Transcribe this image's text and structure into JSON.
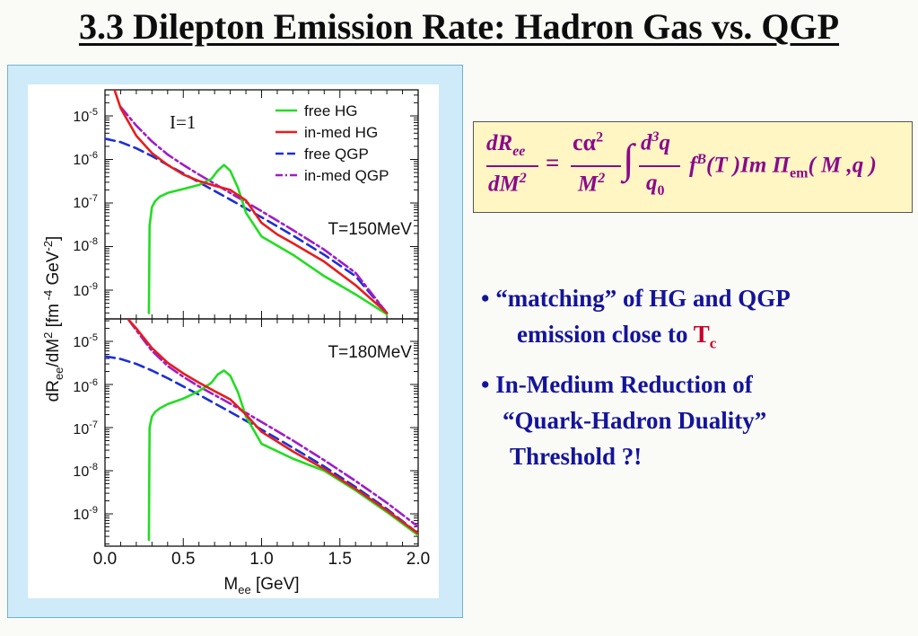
{
  "slide": {
    "title": "3.3 Dilepton Emission Rate: Hadron Gas vs. QGP"
  },
  "formula": {
    "lhs_num": "dR",
    "lhs_num_sub": "ee",
    "lhs_den": "dM",
    "lhs_den_sup": "2",
    "equals": "=",
    "c_alpha": "cα",
    "alpha_sup": "2",
    "M": "M",
    "M_sup": "2",
    "integral": "∫",
    "d3q": "d",
    "d3q_sup": "3",
    "q_letter": "q",
    "q0": "q",
    "q0_sub": "0",
    "rest_a": "f",
    "rest_a_sup": "B",
    "rest_b": "(T )Im Π",
    "rest_b_sub": "em",
    "rest_c": "( M ,q )"
  },
  "bullets": {
    "b1_line1": "• “matching” of HG and QGP",
    "b1_line2": "emission close to ",
    "b1_tc": "T",
    "b1_tc_sub": "c",
    "b2_line1": "• In-Medium Reduction of",
    "b2_line2": "“Quark-Hadron Duality”",
    "b2_line3": "Threshold ?!"
  },
  "colors": {
    "free_hg": "#22dd22",
    "in_med_hg": "#e81c1c",
    "free_qgp": "#1c2fd6",
    "in_med_qgp": "#a01cc8",
    "bullet_text": "#14149a",
    "tc": "#c8002a",
    "formula_text": "#8a0a8a"
  },
  "chart_data": {
    "type": "line",
    "xlabel": "M_ee [GeV]",
    "ylabel": "dR_ee/dM^2 [fm^-4 GeV^-2]",
    "x_ticks": [
      "0.0",
      "0.5",
      "1.0",
      "1.5",
      "2.0"
    ],
    "xlim": [
      0,
      2
    ],
    "y_scale": "log",
    "legend": [
      "free HG",
      "in-med HG",
      "free QGP",
      "in-med QGP"
    ],
    "legend_position": "top-right of top panel",
    "annotation": "I=1",
    "panels": [
      {
        "label": "T=150MeV",
        "ylim": [
          3e-10,
          4e-05
        ],
        "y_ticks": [
          "10^-5",
          "10^-6",
          "10^-7",
          "10^-8",
          "10^-9"
        ],
        "series": [
          {
            "name": "free HG",
            "x": [
              0.28,
              0.285,
              0.3,
              0.32,
              0.35,
              0.4,
              0.5,
              0.6,
              0.68,
              0.72,
              0.76,
              0.8,
              0.85,
              0.9,
              1.0,
              1.2,
              1.4,
              1.6,
              1.8
            ],
            "y": [
              3e-10,
              3e-08,
              8e-08,
              1.1e-07,
              1.4e-07,
              1.7e-07,
              2.1e-07,
              2.6e-07,
              3.6e-07,
              5.5e-07,
              7.5e-07,
              5.5e-07,
              2.2e-07,
              6e-08,
              1.7e-08,
              6.5e-09,
              2.1e-09,
              8e-10,
              2.8e-10
            ]
          },
          {
            "name": "in-med HG",
            "x": [
              0.06,
              0.1,
              0.2,
              0.3,
              0.4,
              0.5,
              0.6,
              0.7,
              0.8,
              0.9,
              1.0,
              1.1,
              1.2,
              1.4,
              1.6,
              1.8
            ],
            "y": [
              4e-05,
              1.5e-05,
              3.5e-06,
              1.4e-06,
              7.5e-07,
              4.5e-07,
              3.2e-07,
              2.5e-07,
              2e-07,
              1.15e-07,
              3.5e-08,
              1.9e-08,
              1.2e-08,
              4.5e-09,
              1.3e-09,
              3e-10
            ]
          },
          {
            "name": "free QGP",
            "x": [
              0.0,
              0.1,
              0.2,
              0.3,
              0.4,
              0.5,
              0.6,
              0.8,
              1.0,
              1.2,
              1.4,
              1.6,
              1.8
            ],
            "y": [
              3e-06,
              2.5e-06,
              1.8e-06,
              1.2e-06,
              7.5e-07,
              4.8e-07,
              3e-07,
              1.2e-07,
              4.7e-08,
              1.8e-08,
              6.5e-09,
              2.1e-09,
              3e-10
            ]
          },
          {
            "name": "in-med QGP",
            "x": [
              0.1,
              0.2,
              0.3,
              0.4,
              0.5,
              0.6,
              0.8,
              1.0,
              1.2,
              1.4,
              1.6,
              1.8
            ],
            "y": [
              1.6e-05,
              6e-06,
              2.6e-06,
              1.3e-06,
              7.5e-07,
              4.5e-07,
              1.7e-07,
              6.5e-08,
              2.4e-08,
              8.5e-09,
              2.5e-09,
              3e-10
            ]
          }
        ]
      },
      {
        "label": "T=180MeV",
        "ylim": [
          2.5e-10,
          4e-05
        ],
        "y_ticks": [
          "10^-5",
          "10^-6",
          "10^-7",
          "10^-8",
          "10^-9"
        ],
        "series": [
          {
            "name": "free HG",
            "x": [
              0.28,
              0.285,
              0.3,
              0.32,
              0.35,
              0.4,
              0.5,
              0.6,
              0.68,
              0.72,
              0.76,
              0.8,
              0.85,
              0.9,
              1.0,
              1.2,
              1.4,
              1.6,
              1.8,
              2.0
            ],
            "y": [
              2.5e-10,
              1e-07,
              1.8e-07,
              2.3e-07,
              2.8e-07,
              3.5e-07,
              4.7e-07,
              7e-07,
              1.1e-06,
              1.7e-06,
              2.1e-06,
              1.6e-06,
              6.5e-07,
              1.8e-07,
              4.2e-08,
              1.9e-08,
              1e-08,
              3.5e-09,
              1.1e-09,
              3.2e-10
            ]
          },
          {
            "name": "in-med HG",
            "x": [
              0.15,
              0.2,
              0.3,
              0.4,
              0.5,
              0.6,
              0.7,
              0.8,
              0.9,
              1.0,
              1.2,
              1.4,
              1.6,
              1.8,
              2.0
            ],
            "y": [
              3.2e-05,
              2e-05,
              7e-06,
              3.2e-06,
              1.8e-06,
              1.1e-06,
              7e-07,
              4.5e-07,
              2e-07,
              8e-08,
              2.8e-08,
              1.1e-08,
              3.8e-09,
              1.2e-09,
              3.5e-10
            ]
          },
          {
            "name": "free QGP",
            "x": [
              0.0,
              0.1,
              0.2,
              0.3,
              0.4,
              0.5,
              0.6,
              0.8,
              1.0,
              1.2,
              1.4,
              1.6,
              1.8,
              2.0
            ],
            "y": [
              4.5e-06,
              3.9e-06,
              3e-06,
              2.1e-06,
              1.4e-06,
              9e-07,
              5.8e-07,
              2.3e-07,
              9e-08,
              3.4e-08,
              1.25e-08,
              4.2e-09,
              1.3e-09,
              3.5e-10
            ]
          },
          {
            "name": "in-med QGP",
            "x": [
              0.15,
              0.2,
              0.3,
              0.4,
              0.5,
              0.6,
              0.8,
              1.0,
              1.2,
              1.4,
              1.6,
              1.8,
              2.0
            ],
            "y": [
              3.2e-05,
              1.8e-05,
              6e-06,
              2.7e-06,
              1.5e-06,
              9e-07,
              3.6e-07,
              1.35e-07,
              5e-08,
              1.75e-08,
              5.8e-09,
              1.8e-09,
              5e-10
            ]
          }
        ]
      }
    ]
  }
}
